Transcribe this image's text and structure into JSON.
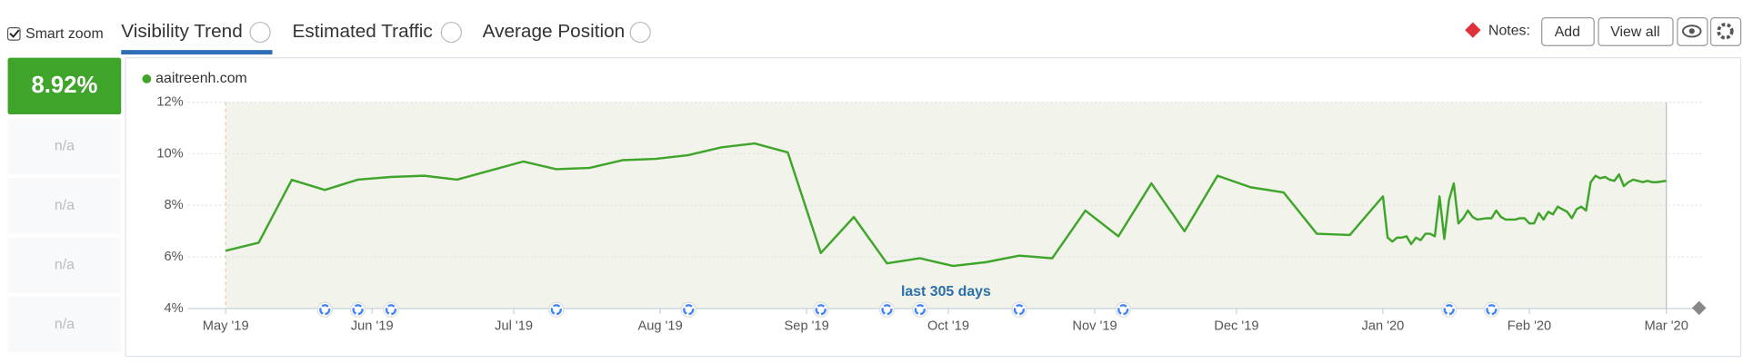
{
  "ui": {
    "smart_zoom": "Smart zoom",
    "tabs": [
      "Visibility Trend",
      "Estimated Traffic",
      "Average Position"
    ],
    "notes_label": "Notes:",
    "add_button": "Add",
    "view_all_button": "View all",
    "current_value": "8.92%",
    "other_values": [
      "n/a",
      "n/a",
      "n/a",
      "n/a"
    ],
    "range_label": "last 305 days"
  },
  "chart_data": {
    "type": "line",
    "series": [
      {
        "name": "aaitreenh.com",
        "color": "#3ea52a",
        "values": [
          6.24,
          6.55,
          8.99,
          8.6,
          9.0,
          9.1,
          9.15,
          9.0,
          9.35,
          9.7,
          9.4,
          9.45,
          9.75,
          9.8,
          9.95,
          10.25,
          10.4,
          10.05,
          6.15,
          7.55,
          5.75,
          5.95,
          5.65,
          5.8,
          6.05,
          5.95,
          7.8,
          6.8,
          8.85,
          7.0,
          9.15,
          8.7,
          8.5,
          6.9,
          6.85,
          8.35,
          6.75,
          6.6,
          6.75,
          6.75,
          6.8,
          6.5,
          6.75,
          6.65,
          6.9,
          6.9,
          6.8,
          8.35,
          6.7,
          8.2,
          8.85,
          7.3,
          7.5,
          7.8,
          7.55,
          7.45,
          7.5,
          7.5,
          7.8,
          7.55,
          7.45,
          7.45,
          7.5,
          7.5,
          7.3,
          7.3,
          7.7,
          7.45,
          7.75,
          7.65,
          7.95,
          7.85,
          7.75,
          7.5,
          7.85,
          7.95,
          7.8,
          8.9,
          9.15,
          9.05,
          9.1,
          9.0,
          8.95,
          9.2,
          8.75,
          8.9,
          9.0,
          8.9,
          8.95,
          8.9,
          8.9,
          8.95
        ]
      }
    ],
    "x": [
      0,
      7,
      14,
      21,
      28,
      35,
      42,
      49,
      56,
      63,
      70,
      77,
      84,
      91,
      98,
      105,
      112,
      119,
      126,
      133,
      140,
      147,
      154,
      161,
      168,
      175,
      182,
      189,
      196,
      203,
      210,
      217,
      224,
      231,
      238,
      245,
      246,
      247,
      248,
      249,
      250,
      251,
      252,
      253,
      254,
      255,
      256,
      257,
      258,
      259,
      260,
      261,
      262,
      263,
      264,
      265,
      267,
      268,
      269,
      270,
      271,
      273,
      274,
      275,
      276,
      277,
      278,
      279,
      280,
      281,
      282,
      283,
      284,
      285,
      286,
      287,
      288,
      289,
      290,
      291,
      292,
      293,
      294,
      295,
      296,
      297,
      298,
      300,
      301,
      302,
      303,
      305
    ],
    "xlim": [
      -8,
      313
    ],
    "xticks": [
      {
        "value": 0,
        "label": "May '19"
      },
      {
        "value": 31,
        "label": "Jun '19"
      },
      {
        "value": 61,
        "label": "Jul '19"
      },
      {
        "value": 92,
        "label": "Aug '19"
      },
      {
        "value": 123,
        "label": "Sep '19"
      },
      {
        "value": 153,
        "label": "Oct '19"
      },
      {
        "value": 184,
        "label": "Nov '19"
      },
      {
        "value": 214,
        "label": "Dec '19"
      },
      {
        "value": 245,
        "label": "Jan '20"
      },
      {
        "value": 276,
        "label": "Feb '20"
      },
      {
        "value": 305,
        "label": "Mar '20"
      }
    ],
    "ylim": [
      4,
      12
    ],
    "yticks": [
      {
        "value": 4,
        "label": "4%"
      },
      {
        "value": 6,
        "label": "6%"
      },
      {
        "value": 8,
        "label": "8%"
      },
      {
        "value": 10,
        "label": "10%"
      },
      {
        "value": 12,
        "label": "12%"
      }
    ],
    "grid": true,
    "google_updates": [
      21,
      28,
      35,
      70,
      98,
      126,
      140,
      147,
      168,
      190,
      259,
      268
    ]
  }
}
